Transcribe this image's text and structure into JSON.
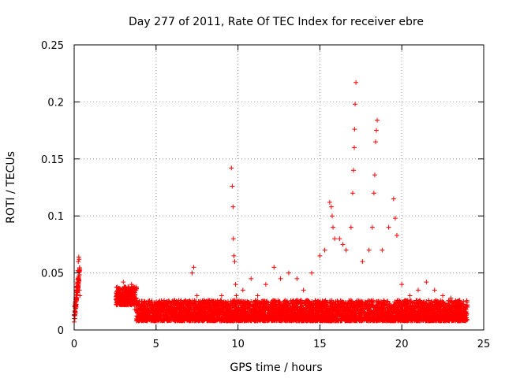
{
  "chart_data": {
    "type": "scatter",
    "title": "Day 277 of 2011, Rate Of TEC Index for receiver ebre",
    "xlabel": "GPS time / hours",
    "ylabel": "ROTI / TECUs",
    "xlim": [
      0,
      25
    ],
    "ylim": [
      0,
      0.25
    ],
    "xticks": [
      0,
      5,
      10,
      15,
      20,
      25
    ],
    "xtick_labels": [
      "0",
      "5",
      "10",
      "15",
      "20",
      "25"
    ],
    "yticks": [
      0,
      0.05,
      0.1,
      0.15,
      0.2,
      0.25
    ],
    "ytick_labels": [
      "0",
      "0.05",
      "0.1",
      "0.15",
      "0.2",
      "0.25"
    ],
    "grid": true,
    "marker": "+",
    "color": "#ff0000",
    "series": [
      {
        "name": "ROTI",
        "x": [
          0.0,
          0.05,
          0.1,
          0.12,
          0.15,
          0.18,
          0.2,
          0.22,
          0.25,
          0.28,
          0.3,
          0.32,
          0.35,
          2.6,
          2.8,
          3.0,
          3.1,
          3.3,
          3.5,
          3.6,
          3.7,
          4.0,
          4.5,
          5.0,
          5.5,
          6.0,
          6.5,
          7.0,
          7.2,
          7.3,
          7.5,
          8.0,
          8.5,
          9.0,
          9.6,
          9.65,
          9.7,
          9.72,
          9.75,
          9.8,
          9.85,
          9.9,
          10.3,
          10.8,
          11.2,
          11.7,
          12.2,
          12.6,
          13.1,
          13.6,
          14.0,
          14.5,
          15.0,
          15.3,
          15.6,
          15.7,
          15.75,
          15.8,
          15.9,
          16.2,
          16.4,
          16.6,
          16.9,
          17.0,
          17.05,
          17.1,
          17.12,
          17.15,
          17.2,
          17.6,
          18.0,
          18.2,
          18.3,
          18.35,
          18.4,
          18.45,
          18.5,
          18.8,
          19.2,
          19.5,
          19.6,
          19.7,
          20.0,
          20.5,
          21.0,
          21.5,
          22.0,
          22.5,
          23.0,
          23.5,
          23.8,
          24.0
        ],
        "y": [
          0.007,
          0.01,
          0.015,
          0.02,
          0.028,
          0.035,
          0.041,
          0.052,
          0.06,
          0.064,
          0.062,
          0.035,
          0.03,
          0.032,
          0.03,
          0.042,
          0.038,
          0.036,
          0.04,
          0.025,
          0.018,
          0.015,
          0.012,
          0.022,
          0.018,
          0.015,
          0.02,
          0.025,
          0.05,
          0.055,
          0.03,
          0.02,
          0.025,
          0.03,
          0.142,
          0.126,
          0.108,
          0.08,
          0.065,
          0.06,
          0.04,
          0.03,
          0.035,
          0.045,
          0.03,
          0.04,
          0.055,
          0.045,
          0.05,
          0.045,
          0.035,
          0.05,
          0.065,
          0.07,
          0.112,
          0.108,
          0.1,
          0.09,
          0.08,
          0.08,
          0.075,
          0.07,
          0.09,
          0.12,
          0.14,
          0.16,
          0.176,
          0.198,
          0.217,
          0.06,
          0.07,
          0.09,
          0.12,
          0.136,
          0.165,
          0.175,
          0.184,
          0.07,
          0.09,
          0.115,
          0.098,
          0.083,
          0.04,
          0.03,
          0.035,
          0.042,
          0.035,
          0.03,
          0.028,
          0.025,
          0.02,
          0.02
        ]
      }
    ]
  }
}
